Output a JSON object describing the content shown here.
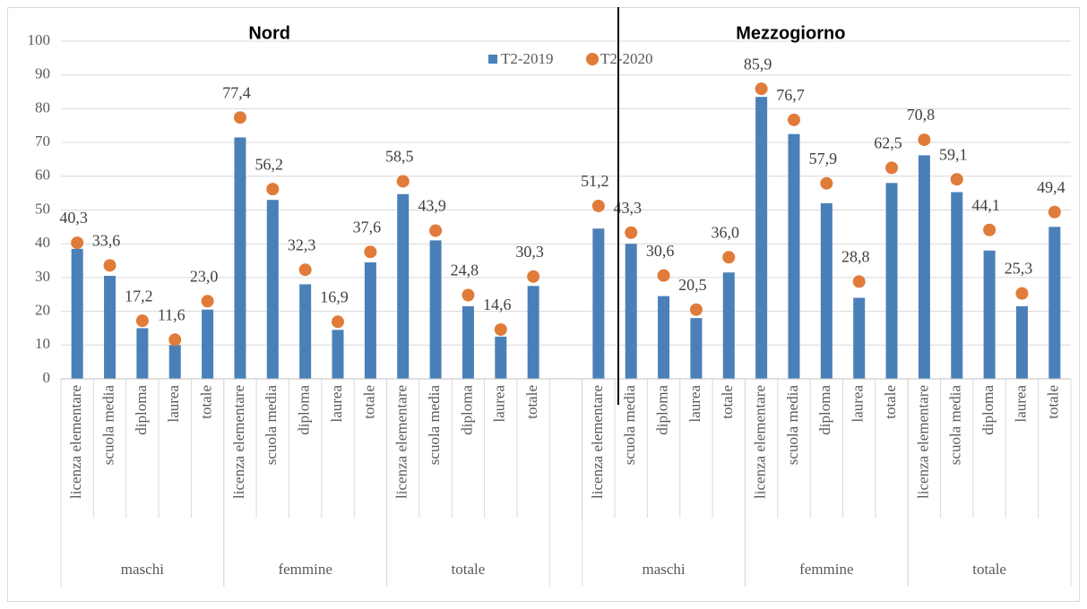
{
  "chart_data": {
    "type": "bar",
    "ylim": [
      0,
      100
    ],
    "yticks": [
      0,
      10,
      20,
      30,
      40,
      50,
      60,
      70,
      80,
      90,
      100
    ],
    "grid": true,
    "series": [
      {
        "name": "T2-2019",
        "color": "#4a80b8",
        "marker": "bar"
      },
      {
        "name": "T2-2020",
        "color": "#e07b39",
        "marker": "dot"
      }
    ],
    "panels": [
      {
        "title": "Nord",
        "groups": [
          {
            "label": "maschi",
            "categories": [
              "licenza elementare",
              "scuola media",
              "diploma",
              "laurea",
              "totale"
            ],
            "series": [
              {
                "values": [
                  38.5,
                  30.5,
                  15,
                  10,
                  20.5
                ]
              },
              {
                "values": [
                  40.3,
                  33.6,
                  17.2,
                  11.6,
                  23.0
                ],
                "value_labels": [
                  "40,3",
                  "33,6",
                  "17,2",
                  "11,6",
                  "23,0"
                ]
              }
            ]
          },
          {
            "label": "femmine",
            "categories": [
              "licenza elementare",
              "scuola media",
              "diploma",
              "laurea",
              "totale"
            ],
            "series": [
              {
                "values": [
                  71.5,
                  53,
                  28,
                  14.5,
                  34.5
                ]
              },
              {
                "values": [
                  77.4,
                  56.2,
                  32.3,
                  16.9,
                  37.6
                ],
                "value_labels": [
                  "77,4",
                  "56,2",
                  "32,3",
                  "16,9",
                  "37,6"
                ]
              }
            ]
          },
          {
            "label": "totale",
            "categories": [
              "licenza elementare",
              "scuola media",
              "diploma",
              "laurea",
              "totale"
            ],
            "series": [
              {
                "values": [
                  54.7,
                  41,
                  21.5,
                  12.5,
                  27.5
                ]
              },
              {
                "values": [
                  58.5,
                  43.9,
                  24.8,
                  14.6,
                  30.3
                ],
                "value_labels": [
                  "58,5",
                  "43,9",
                  "24,8",
                  "14,6",
                  "30,3"
                ]
              }
            ]
          }
        ]
      },
      {
        "title": "Mezzogiorno",
        "groups": [
          {
            "label": "maschi",
            "categories": [
              "licenza elementare",
              "scuola media",
              "diploma",
              "laurea",
              "totale"
            ],
            "series": [
              {
                "values": [
                  44.5,
                  40,
                  24.5,
                  18,
                  31.5
                ]
              },
              {
                "values": [
                  51.2,
                  43.3,
                  30.6,
                  20.5,
                  36.0
                ],
                "value_labels": [
                  "51,2",
                  "43,3",
                  "30,6",
                  "20,5",
                  "36,0"
                ]
              }
            ]
          },
          {
            "label": "femmine",
            "categories": [
              "licenza elementare",
              "scuola media",
              "diploma",
              "laurea",
              "totale"
            ],
            "series": [
              {
                "values": [
                  83.5,
                  72.5,
                  52,
                  24,
                  58
                ]
              },
              {
                "values": [
                  85.9,
                  76.7,
                  57.9,
                  28.8,
                  62.5
                ],
                "value_labels": [
                  "85,9",
                  "76,7",
                  "57,9",
                  "28,8",
                  "62,5"
                ]
              }
            ]
          },
          {
            "label": "totale",
            "categories": [
              "licenza elementare",
              "scuola media",
              "diploma",
              "laurea",
              "totale"
            ],
            "series": [
              {
                "values": [
                  66.2,
                  55.3,
                  38,
                  21.5,
                  45
                ]
              },
              {
                "values": [
                  70.8,
                  59.1,
                  44.1,
                  25.3,
                  49.4
                ],
                "value_labels": [
                  "70,8",
                  "59,1",
                  "44,1",
                  "25,3",
                  "49,4"
                ]
              }
            ]
          }
        ]
      }
    ]
  }
}
